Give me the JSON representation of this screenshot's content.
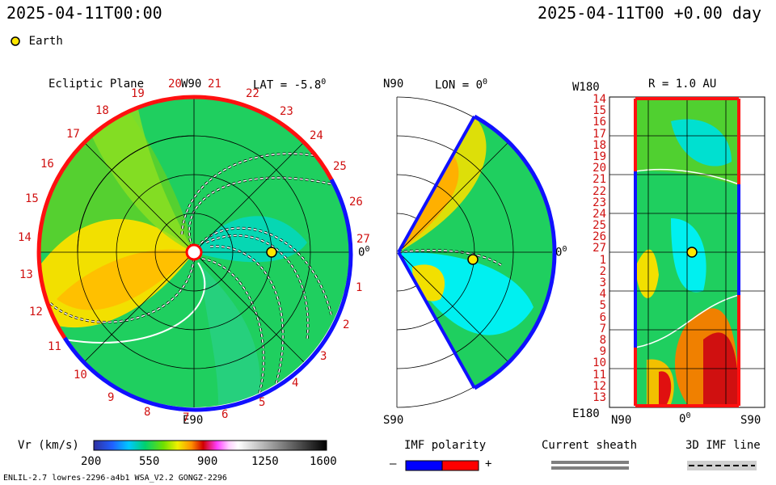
{
  "header": {
    "left_time": "2025-04-11T00:00",
    "right_time": "2025-04-11T00 +0.00 day"
  },
  "legend": {
    "earth_label": "Earth",
    "earth_color": "#ffe600"
  },
  "ecliptic": {
    "title": "Ecliptic Plane",
    "lat_label": "LAT = -5.8",
    "lat_deg": "0",
    "top_label": "W90",
    "bottom_label": "E90",
    "right_label": "0",
    "right_deg": "0",
    "carrington_labels": [
      "1",
      "2",
      "3",
      "4",
      "5",
      "6",
      "7",
      "8",
      "9",
      "10",
      "11",
      "12",
      "13",
      "14",
      "15",
      "16",
      "17",
      "18",
      "19",
      "20",
      "21",
      "22",
      "23",
      "24",
      "25",
      "26",
      "27"
    ]
  },
  "meridional": {
    "top_label": "N90",
    "lon_label": "LON = 0",
    "lon_deg": "0",
    "bottom_label": "S90",
    "right_label": "0",
    "right_deg": "0"
  },
  "radial": {
    "top_left_label": "W180",
    "title": "R = 1.0 AU",
    "bottom_left_label": "E180",
    "x_labels": [
      "N90",
      "0",
      "S90"
    ],
    "x_deg": "0",
    "y_labels": [
      "14",
      "15",
      "16",
      "17",
      "18",
      "19",
      "20",
      "21",
      "22",
      "23",
      "24",
      "25",
      "26",
      "27",
      "1",
      "2",
      "3",
      "4",
      "5",
      "6",
      "7",
      "8",
      "9",
      "10",
      "11",
      "12",
      "13"
    ]
  },
  "colorbar": {
    "label": "Vr (km/s)",
    "ticks": [
      "200",
      "550",
      "900",
      "1250",
      "1600"
    ]
  },
  "imf": {
    "title": "IMF polarity",
    "minus": "–",
    "plus": "+",
    "neg_color": "#0000ff",
    "pos_color": "#ff0000"
  },
  "sheath": {
    "title": "Current sheath"
  },
  "imf_line": {
    "title": "3D IMF line"
  },
  "footer": {
    "model": "ENLIL-2.7 lowres-2296-a4b1 WSA_V2.2 GONGZ-2296"
  }
}
